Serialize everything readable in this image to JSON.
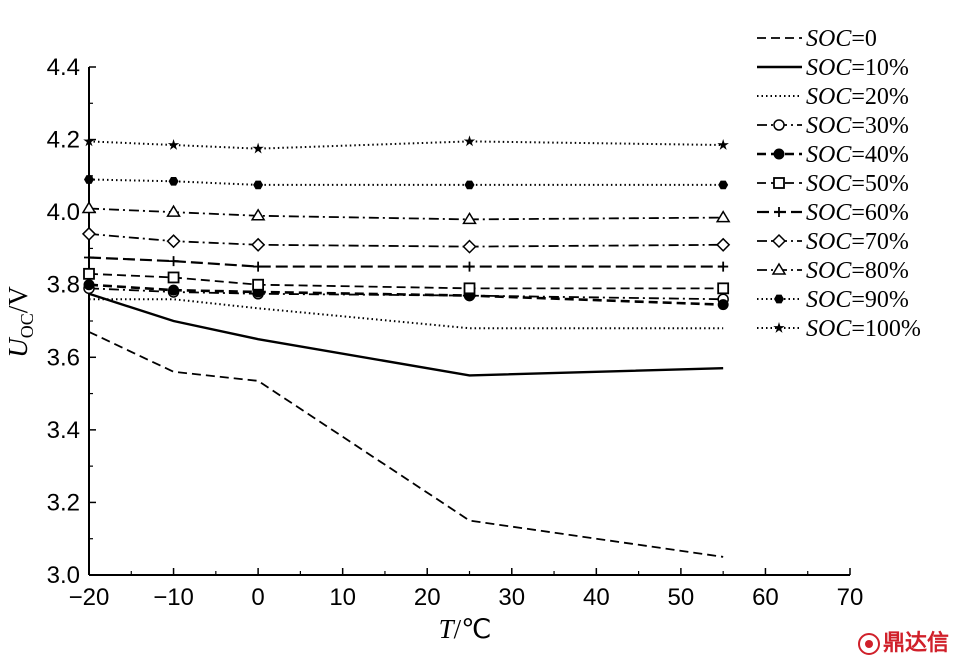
{
  "chart_data": {
    "type": "line",
    "xlabel": {
      "var": "T",
      "unit": "/℃"
    },
    "ylabel": {
      "var": "U",
      "sub": "OC",
      "unit": "/V"
    },
    "xlim": [
      -20,
      70
    ],
    "ylim": [
      3.0,
      4.4
    ],
    "xticks": [
      -20,
      -10,
      0,
      10,
      20,
      30,
      40,
      50,
      60,
      70
    ],
    "yticks": [
      3.0,
      3.2,
      3.4,
      3.6,
      3.8,
      4.0,
      4.2,
      4.4
    ],
    "x": [
      -20,
      -10,
      0,
      25,
      55
    ],
    "legend_position": "right",
    "series": [
      {
        "name_var": "SOC",
        "name_val": "=0",
        "style": "dashed",
        "marker": "none",
        "values": [
          3.67,
          3.56,
          3.535,
          3.15,
          3.05
        ]
      },
      {
        "name_var": "SOC",
        "name_val": "=10%",
        "style": "solid",
        "marker": "none",
        "values": [
          3.775,
          3.7,
          3.65,
          3.55,
          3.57
        ]
      },
      {
        "name_var": "SOC",
        "name_val": "=20%",
        "style": "dotted",
        "marker": "none",
        "values": [
          3.76,
          3.76,
          3.735,
          3.68,
          3.68
        ]
      },
      {
        "name_var": "SOC",
        "name_val": "=30%",
        "style": "dashdot",
        "marker": "circle-open",
        "values": [
          3.79,
          3.78,
          3.775,
          3.77,
          3.76
        ]
      },
      {
        "name_var": "SOC",
        "name_val": "=40%",
        "style": "dashheavy",
        "marker": "circle-filled",
        "values": [
          3.8,
          3.785,
          3.78,
          3.77,
          3.745
        ]
      },
      {
        "name_var": "SOC",
        "name_val": "=50%",
        "style": "dashed",
        "marker": "square-open",
        "values": [
          3.83,
          3.82,
          3.8,
          3.79,
          3.79
        ]
      },
      {
        "name_var": "SOC",
        "name_val": "=60%",
        "style": "longdash",
        "marker": "plus",
        "values": [
          3.875,
          3.865,
          3.85,
          3.85,
          3.85
        ]
      },
      {
        "name_var": "SOC",
        "name_val": "=70%",
        "style": "dashdot",
        "marker": "diamond-open",
        "values": [
          3.94,
          3.92,
          3.91,
          3.905,
          3.91
        ]
      },
      {
        "name_var": "SOC",
        "name_val": "=80%",
        "style": "dashdot",
        "marker": "triangle-open",
        "values": [
          4.01,
          4.0,
          3.99,
          3.98,
          3.985
        ]
      },
      {
        "name_var": "SOC",
        "name_val": "=90%",
        "style": "dotted",
        "marker": "hex-filled",
        "values": [
          4.09,
          4.085,
          4.075,
          4.075,
          4.075
        ]
      },
      {
        "name_var": "SOC",
        "name_val": "=100%",
        "style": "dotted",
        "marker": "star",
        "values": [
          4.195,
          4.185,
          4.175,
          4.195,
          4.185
        ]
      }
    ]
  },
  "watermark": {
    "text": "鼎达信"
  }
}
